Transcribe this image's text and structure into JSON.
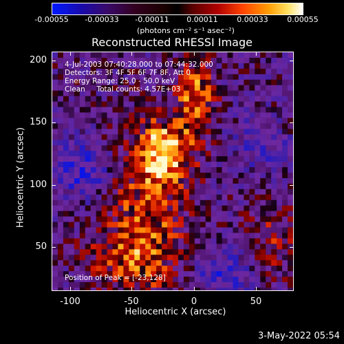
{
  "colorbar": {
    "ticks": [
      "-0.00055",
      "-0.00033",
      "-0.00011",
      "0.00011",
      "0.00033",
      "0.00055"
    ],
    "units": "(photons cm⁻² s⁻¹ asec⁻²)"
  },
  "title": "Reconstructed RHESSI Image",
  "info": {
    "time_range": "4-Jul-2003 07:40:28.000 to 07:44:32.000",
    "detectors": "Detectors: 3F 4F 5F 6F 7F 8F, Att 0",
    "energy": "Energy Range: 25.0 - 50.0 keV",
    "clean": "Clean     Total counts: 4.57E+03",
    "peak": "Position of Peak = [-23,128]"
  },
  "axes": {
    "xlabel": "Heliocentric X (arcsec)",
    "ylabel": "Heliocentric Y (arcsec)",
    "xticks": [
      "-100",
      "-50",
      "0",
      "50"
    ],
    "yticks": [
      "200",
      "150",
      "100",
      "50"
    ]
  },
  "datestamp": "3-May-2022 05:54"
}
